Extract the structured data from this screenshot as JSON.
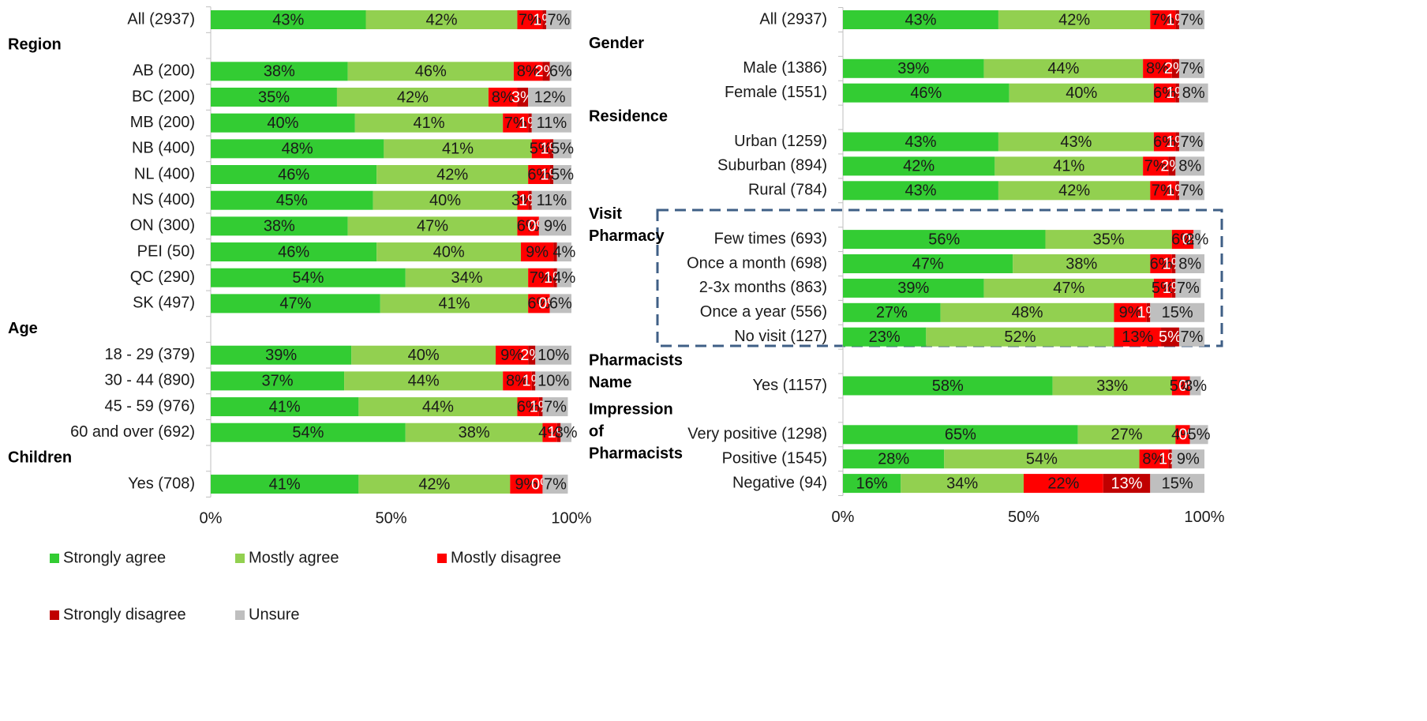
{
  "chart_data": [
    {
      "type": "stacked-bar-horizontal",
      "categories": [
        "All (2937)",
        null,
        "AB (200)",
        "BC (200)",
        "MB (200)",
        "NB (400)",
        "NL (400)",
        "NS (400)",
        "ON (300)",
        "PEI (50)",
        "QC (290)",
        "SK (497)",
        null,
        "18 - 29 (379)",
        "30 - 44 (890)",
        "45 - 59 (976)",
        "60 and over (692)",
        null,
        "Yes (708)"
      ],
      "groups": [
        null,
        "Region",
        null,
        null,
        null,
        null,
        null,
        null,
        null,
        null,
        null,
        null,
        "Age",
        null,
        null,
        null,
        null,
        "Children",
        null
      ],
      "series": [
        {
          "name": "Strongly agree",
          "color": "#33cc33",
          "values": [
            43,
            null,
            38,
            35,
            40,
            48,
            46,
            45,
            38,
            46,
            54,
            47,
            null,
            39,
            37,
            41,
            54,
            null,
            41
          ],
          "value_labels": [
            "43%",
            null,
            "38%",
            "35%",
            "40%",
            "48%",
            "46%",
            "45%",
            "38%",
            "46%",
            "54%",
            "47%",
            null,
            "39%",
            "37%",
            "41%",
            "54%",
            null,
            "41%"
          ]
        },
        {
          "name": "Mostly agree",
          "color": "#92d050",
          "values": [
            42,
            null,
            46,
            42,
            41,
            41,
            42,
            40,
            47,
            40,
            34,
            41,
            null,
            40,
            44,
            44,
            38,
            null,
            42
          ],
          "value_labels": [
            "42%",
            null,
            "46%",
            "42%",
            "41%",
            "41%",
            "42%",
            "40%",
            "47%",
            "40%",
            "34%",
            "41%",
            null,
            "40%",
            "44%",
            "44%",
            "38%",
            null,
            "42%"
          ]
        },
        {
          "name": "Mostly disagree",
          "color": "#ff0000",
          "values": [
            7,
            null,
            8,
            8,
            7,
            5,
            6,
            3,
            6,
            9,
            7,
            6,
            null,
            9,
            8,
            6,
            4,
            null,
            9
          ],
          "value_labels": [
            "7%",
            null,
            "8%",
            "8%",
            "7%",
            "5%",
            "6%",
            "3%",
            "6%",
            "9%",
            "7%",
            "6%",
            null,
            "9%",
            "8%",
            "6%",
            "4%",
            null,
            "9%"
          ]
        },
        {
          "name": "Strongly disagree",
          "color": "#c00000",
          "values": [
            1,
            null,
            2,
            3,
            1,
            1,
            1,
            1,
            0,
            1,
            1,
            0,
            null,
            2,
            1,
            1,
            1,
            null,
            0
          ],
          "value_labels": [
            "1%",
            null,
            "2%",
            "3%",
            "1%",
            "1%",
            "1%",
            "1%",
            "0%",
            null,
            "1%",
            "0%",
            null,
            "2%",
            "1%",
            "1%",
            "1%",
            null,
            "0%"
          ]
        },
        {
          "name": "Unsure",
          "color": "#bfbfbf",
          "values": [
            7,
            null,
            6,
            12,
            11,
            5,
            5,
            11,
            9,
            4,
            4,
            6,
            null,
            10,
            10,
            7,
            3,
            null,
            7
          ],
          "value_labels": [
            "7%",
            null,
            "6%",
            "12%",
            "11%",
            "5%",
            "5%",
            "11%",
            "9%",
            "4%",
            "4%",
            "6%",
            null,
            "10%",
            "10%",
            "7%",
            "3%",
            null,
            "7%"
          ]
        }
      ],
      "xlim": [
        0,
        100
      ],
      "xticks": [
        {
          "value": 0,
          "label": "0%"
        },
        {
          "value": 50,
          "label": "50%"
        },
        {
          "value": 100,
          "label": "100%"
        }
      ]
    },
    {
      "type": "stacked-bar-horizontal",
      "categories": [
        "All (2937)",
        null,
        "Male (1386)",
        "Female (1551)",
        null,
        "Urban (1259)",
        "Suburban (894)",
        "Rural (784)",
        null,
        "Few times (693)",
        "Once a month (698)",
        "2-3x months (863)",
        "Once a year (556)",
        "No visit (127)",
        null,
        "Yes (1157)",
        null,
        "Very positive (1298)",
        "Positive (1545)",
        "Negative (94)"
      ],
      "groups": [
        null,
        "Gender",
        null,
        null,
        "Residence",
        null,
        null,
        null,
        "Visit Pharmacy",
        null,
        null,
        null,
        null,
        null,
        "Pharmacists Name",
        null,
        "Impression of Pharmacists",
        null,
        null,
        null
      ],
      "series": [
        {
          "values": [
            43,
            null,
            39,
            46,
            null,
            43,
            42,
            43,
            null,
            56,
            47,
            39,
            27,
            23,
            null,
            58,
            null,
            65,
            28,
            16
          ],
          "value_labels": [
            "43%",
            null,
            "39%",
            "46%",
            null,
            "43%",
            "42%",
            "43%",
            null,
            "56%",
            "47%",
            "39%",
            "27%",
            "23%",
            null,
            "58%",
            null,
            "65%",
            "28%",
            "16%"
          ]
        },
        {
          "values": [
            42,
            null,
            44,
            40,
            null,
            43,
            41,
            42,
            null,
            35,
            38,
            47,
            48,
            52,
            null,
            33,
            null,
            27,
            54,
            34
          ],
          "value_labels": [
            "42%",
            null,
            "44%",
            "40%",
            null,
            "43%",
            "41%",
            "42%",
            null,
            "35%",
            "38%",
            "47%",
            "48%",
            "52%",
            null,
            "33%",
            null,
            "27%",
            "54%",
            "34%"
          ]
        },
        {
          "values": [
            7,
            null,
            8,
            6,
            null,
            6,
            7,
            7,
            null,
            6,
            6,
            5,
            9,
            13,
            null,
            5,
            null,
            4,
            8,
            22
          ],
          "value_labels": [
            "7%",
            null,
            "8%",
            "6%",
            null,
            "6%",
            "7%",
            "7%",
            null,
            "6%",
            "6%",
            "5%",
            "9%",
            "13%",
            null,
            "5%",
            null,
            "4%",
            "8%",
            "22%"
          ]
        },
        {
          "values": [
            1,
            null,
            2,
            1,
            null,
            1,
            2,
            1,
            null,
            0,
            1,
            1,
            1,
            5,
            null,
            0,
            null,
            0,
            1,
            13
          ],
          "value_labels": [
            "1%",
            null,
            "2%",
            "1%",
            null,
            "1%",
            "2%",
            "1%",
            null,
            "0%",
            "1%",
            "1%",
            "1%",
            "5%",
            null,
            "0%",
            null,
            "0%",
            "1%",
            "13%"
          ]
        },
        {
          "values": [
            7,
            null,
            7,
            8,
            null,
            7,
            8,
            7,
            null,
            2,
            8,
            7,
            15,
            7,
            null,
            3,
            null,
            5,
            9,
            15
          ],
          "value_labels": [
            "7%",
            null,
            "7%",
            "8%",
            null,
            "7%",
            "8%",
            "7%",
            null,
            "2%",
            "8%",
            "7%",
            "15%",
            "7%",
            null,
            "3%",
            null,
            "5%",
            "9%",
            "15%"
          ]
        }
      ],
      "xlim": [
        0,
        100
      ],
      "xticks": [
        {
          "value": 0,
          "label": "0%"
        },
        {
          "value": 50,
          "label": "50%"
        },
        {
          "value": 100,
          "label": "100%"
        }
      ]
    }
  ]
}
